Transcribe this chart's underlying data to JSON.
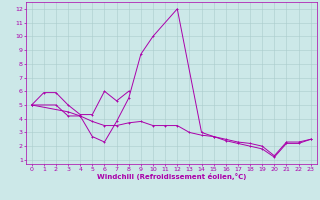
{
  "xlabel": "Windchill (Refroidissement éolien,°C)",
  "background_color": "#cce8e8",
  "grid_color": "#aacccc",
  "line_color": "#aa00aa",
  "line1_x": [
    0,
    1,
    2,
    3,
    4,
    5,
    6,
    7,
    8
  ],
  "line1_y": [
    5.0,
    5.9,
    5.9,
    5.0,
    4.3,
    4.3,
    6.0,
    5.3,
    6.0
  ],
  "line2_x": [
    0,
    2,
    3,
    4,
    5,
    6,
    7,
    8,
    9,
    10,
    12,
    14,
    15,
    16,
    17,
    18,
    19,
    20,
    21,
    22,
    23
  ],
  "line2_y": [
    5.0,
    5.0,
    4.2,
    4.2,
    2.7,
    2.3,
    3.8,
    5.5,
    8.7,
    10.0,
    12.0,
    3.0,
    2.7,
    2.4,
    2.2,
    2.0,
    1.8,
    1.2,
    2.2,
    2.2,
    2.5
  ],
  "line3_x": [
    0,
    3,
    4,
    5,
    6,
    7,
    8,
    9,
    10,
    11,
    12,
    13,
    14,
    15,
    16,
    17,
    18,
    19,
    20,
    21,
    22,
    23
  ],
  "line3_y": [
    5.0,
    4.5,
    4.2,
    3.8,
    3.5,
    3.5,
    3.7,
    3.8,
    3.5,
    3.5,
    3.5,
    3.0,
    2.8,
    2.7,
    2.5,
    2.3,
    2.2,
    2.0,
    1.3,
    2.3,
    2.3,
    2.5
  ],
  "ylim": [
    0.7,
    12.5
  ],
  "xlim": [
    -0.5,
    23.5
  ],
  "yticks": [
    1,
    2,
    3,
    4,
    5,
    6,
    7,
    8,
    9,
    10,
    11,
    12
  ],
  "xticks": [
    0,
    1,
    2,
    3,
    4,
    5,
    6,
    7,
    8,
    9,
    10,
    11,
    12,
    13,
    14,
    15,
    16,
    17,
    18,
    19,
    20,
    21,
    22,
    23
  ],
  "tick_fontsize": 4.5,
  "xlabel_fontsize": 5.0,
  "linewidth": 0.7,
  "markersize": 2.0,
  "markeredgewidth": 0.7
}
